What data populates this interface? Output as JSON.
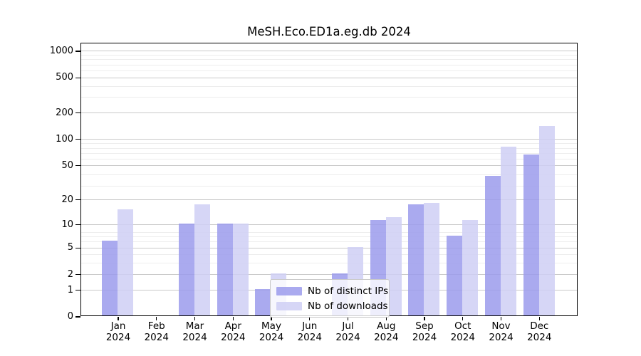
{
  "chart_data": {
    "type": "bar",
    "title": "MeSH.Eco.ED1a.eg.db 2024",
    "categories": [
      "Jan",
      "Feb",
      "Mar",
      "Apr",
      "May",
      "Jun",
      "Jul",
      "Aug",
      "Sep",
      "Oct",
      "Nov",
      "Dec"
    ],
    "x_year_label": "2024",
    "series": [
      {
        "name": "Nb of distinct IPs",
        "color": "#9b9bec",
        "values": [
          6,
          0,
          10,
          10,
          1,
          0,
          2,
          11,
          17,
          7,
          37,
          66
        ]
      },
      {
        "name": "Nb of downloads",
        "color": "#cfcff5",
        "values": [
          15,
          0,
          17,
          10,
          2,
          0,
          5,
          12,
          18,
          11,
          80,
          138
        ]
      }
    ],
    "y_ticks": [
      0,
      1,
      2,
      5,
      10,
      20,
      50,
      100,
      200,
      500,
      1000
    ],
    "y_scale": "log10(value+1)",
    "ylim": [
      0,
      1265
    ],
    "xlabel": "",
    "ylabel": "",
    "grid": "on",
    "legend_position": "lower-center-inside",
    "colors": {
      "grid_major": "#c9c9c9",
      "grid_minor": "#ededed",
      "spine": "#000000",
      "background": "#ffffff"
    }
  }
}
